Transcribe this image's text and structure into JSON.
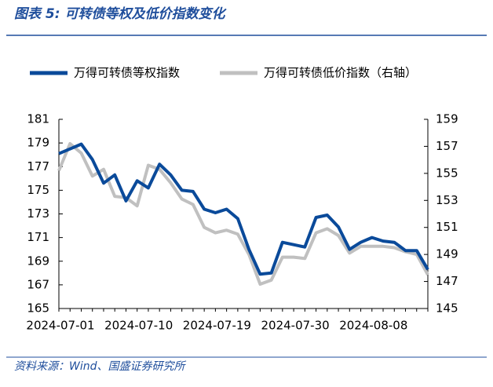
{
  "chart_data": {
    "type": "line",
    "title": "图表 5:  可转债等权及低价指数变化",
    "source": "资料来源：Wind、国盛证券研究所",
    "categories": [
      "2024-07-01",
      null,
      null,
      null,
      null,
      null,
      null,
      "2024-07-10",
      null,
      null,
      null,
      null,
      null,
      null,
      "2024-07-19",
      null,
      null,
      null,
      null,
      null,
      null,
      "2024-07-30",
      null,
      null,
      null,
      null,
      null,
      null,
      "2024-08-08",
      null,
      null,
      null,
      null,
      null
    ],
    "series": [
      {
        "name": "万得可转债等权指数",
        "color": "#0a4a9a",
        "values": [
          178.1,
          178.5,
          178.9,
          177.6,
          175.6,
          176.3,
          174.1,
          175.8,
          175.2,
          177.2,
          176.3,
          175.0,
          174.9,
          173.4,
          173.1,
          173.4,
          172.6,
          170.0,
          167.9,
          168.0,
          170.6,
          170.4,
          170.2,
          172.7,
          172.9,
          171.9,
          170.0,
          170.6,
          171.0,
          170.7,
          170.6,
          169.9,
          169.9,
          168.3
        ]
      },
      {
        "name": "万得可转债低价指数（右轴）",
        "color": "#c0c0c0",
        "axis": "y2",
        "values": [
          155.2,
          157.2,
          156.5,
          154.8,
          155.3,
          153.3,
          153.2,
          152.6,
          155.6,
          155.3,
          154.3,
          153.1,
          152.7,
          151.0,
          150.6,
          150.8,
          150.5,
          149.0,
          146.8,
          147.1,
          148.8,
          148.8,
          148.7,
          150.6,
          150.9,
          150.4,
          149.1,
          149.6,
          149.6,
          149.6,
          149.5,
          149.2,
          149.0,
          147.5
        ]
      }
    ],
    "ylim": [
      165,
      181
    ],
    "yticks": [
      165,
      167,
      169,
      171,
      173,
      175,
      177,
      179,
      181
    ],
    "y2lim": [
      145,
      159
    ],
    "y2ticks": [
      145,
      147,
      149,
      151,
      153,
      155,
      157,
      159
    ]
  }
}
